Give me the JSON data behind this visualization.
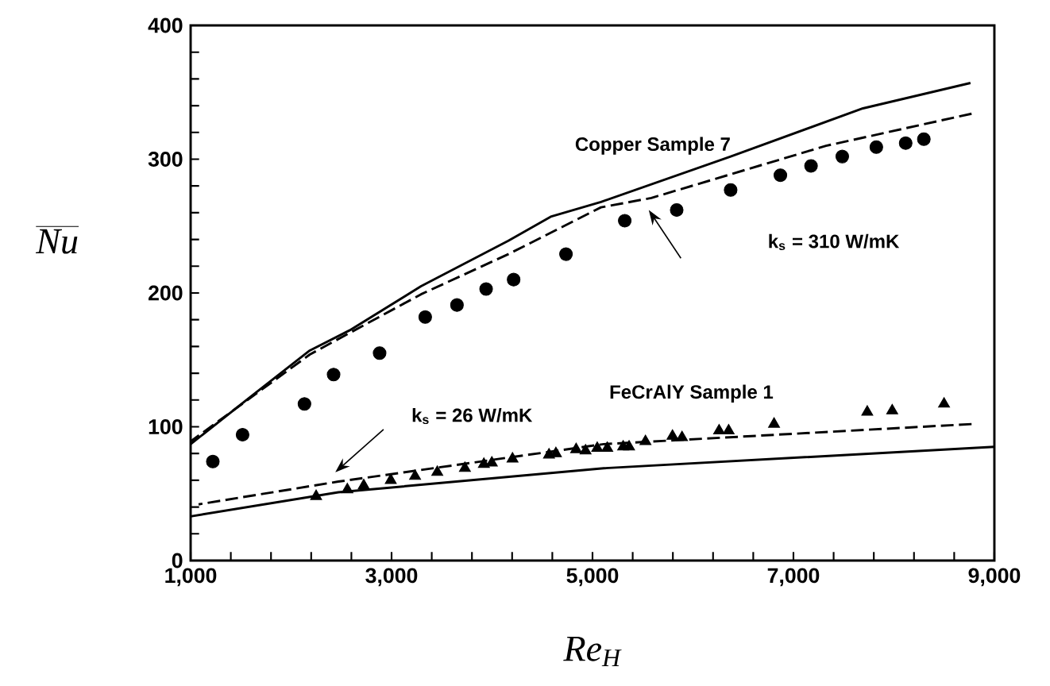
{
  "chart_data": {
    "type": "line",
    "xlabel": "Re$_{H}$",
    "ylabel": "Nu",
    "xlim": [
      1000,
      9000
    ],
    "ylim": [
      0,
      400
    ],
    "xticks": [
      {
        "value": 1000,
        "label": "1,000"
      },
      {
        "value": 1400,
        "label": null
      },
      {
        "value": 1800,
        "label": null
      },
      {
        "value": 2200,
        "label": null
      },
      {
        "value": 2600,
        "label": null
      },
      {
        "value": 3000,
        "label": "3,000"
      },
      {
        "value": 3400,
        "label": null
      },
      {
        "value": 3800,
        "label": null
      },
      {
        "value": 4200,
        "label": null
      },
      {
        "value": 4600,
        "label": null
      },
      {
        "value": 5000,
        "label": "5,000"
      },
      {
        "value": 5400,
        "label": null
      },
      {
        "value": 5800,
        "label": null
      },
      {
        "value": 6200,
        "label": null
      },
      {
        "value": 6600,
        "label": null
      },
      {
        "value": 7000,
        "label": "7,000"
      },
      {
        "value": 7400,
        "label": null
      },
      {
        "value": 7800,
        "label": null
      },
      {
        "value": 8200,
        "label": null
      },
      {
        "value": 8600,
        "label": null
      },
      {
        "value": 9000,
        "label": "9,000"
      }
    ],
    "yticks": [
      0,
      {
        "value": 20,
        "label": null
      },
      {
        "value": 40,
        "label": null
      },
      {
        "value": 60,
        "label": null
      },
      {
        "value": 80,
        "label": null
      },
      100,
      {
        "value": 120,
        "label": null
      },
      {
        "value": 140,
        "label": null
      },
      {
        "value": 160,
        "label": null
      },
      {
        "value": 180,
        "label": null
      },
      200,
      {
        "value": 220,
        "label": null
      },
      {
        "value": 240,
        "label": null
      },
      {
        "value": 260,
        "label": null
      },
      {
        "value": 280,
        "label": null
      },
      300,
      {
        "value": 320,
        "label": null
      },
      {
        "value": 340,
        "label": null
      },
      {
        "value": 360,
        "label": null
      },
      {
        "value": 380,
        "label": null
      },
      400
    ],
    "series": [
      {
        "color": "#000000",
        "line_style": "solid",
        "x": [
          1000,
          1590,
          2186,
          2581,
          3293,
          4162,
          4584,
          5084,
          6375,
          7692,
          8762
        ],
        "values": [
          87,
          122,
          157,
          172,
          205,
          239,
          257,
          268,
          302,
          338,
          357
        ]
      },
      {
        "color": "#000000",
        "line_style": "dashed",
        "x": [
          1000,
          2186,
          3293,
          4162,
          5084,
          5585,
          7324,
          8773
        ],
        "values": [
          89,
          154,
          199,
          229,
          264,
          271,
          310,
          334
        ]
      },
      {
        "type": "scatter",
        "name": "Copper   Sample 7",
        "color": "#000000",
        "marker": "circle",
        "x": [
          1221,
          1517,
          2133,
          2423,
          2881,
          3335,
          3651,
          3941,
          4215,
          4736,
          5321,
          5838,
          6375,
          6870,
          7175,
          7486,
          7825,
          8117,
          8298
        ],
        "values": [
          74,
          94,
          117,
          139,
          155,
          182,
          191,
          203,
          210,
          229,
          254,
          262,
          277,
          288,
          295,
          302,
          309,
          312,
          315
        ]
      },
      {
        "color": "#000000",
        "line_style": "solid",
        "x": [
          1000,
          2470,
          5111,
          9000
        ],
        "values": [
          33,
          51,
          69,
          85
        ]
      },
      {
        "color": "#000000",
        "line_style": "dashed",
        "x": [
          1079,
          2470,
          5111,
          8773
        ],
        "values": [
          42,
          59,
          87,
          102
        ]
      },
      {
        "type": "scatter",
        "name": "FeCrAlY  Sample 1",
        "color": "#000000",
        "marker": "triangle",
        "x": [
          2249,
          2560,
          2723,
          2992,
          3234,
          3455,
          3730,
          3919,
          3998,
          4204,
          4567,
          4636,
          4837,
          4931,
          5047,
          5147,
          5305,
          5364,
          5527,
          5796,
          5891,
          6260,
          6355,
          6807,
          7735,
          7983,
          8499
        ],
        "values": [
          48,
          53,
          56,
          60,
          63,
          66,
          69,
          72,
          73,
          76,
          79,
          80,
          83,
          82,
          84,
          84,
          85,
          85,
          89,
          93,
          92,
          97,
          97,
          102,
          111,
          112,
          117
        ]
      }
    ],
    "annotations": [
      "k$_{s}$ = 310 W/mK",
      "k$_{s}$ = 26 W/mK"
    ]
  }
}
